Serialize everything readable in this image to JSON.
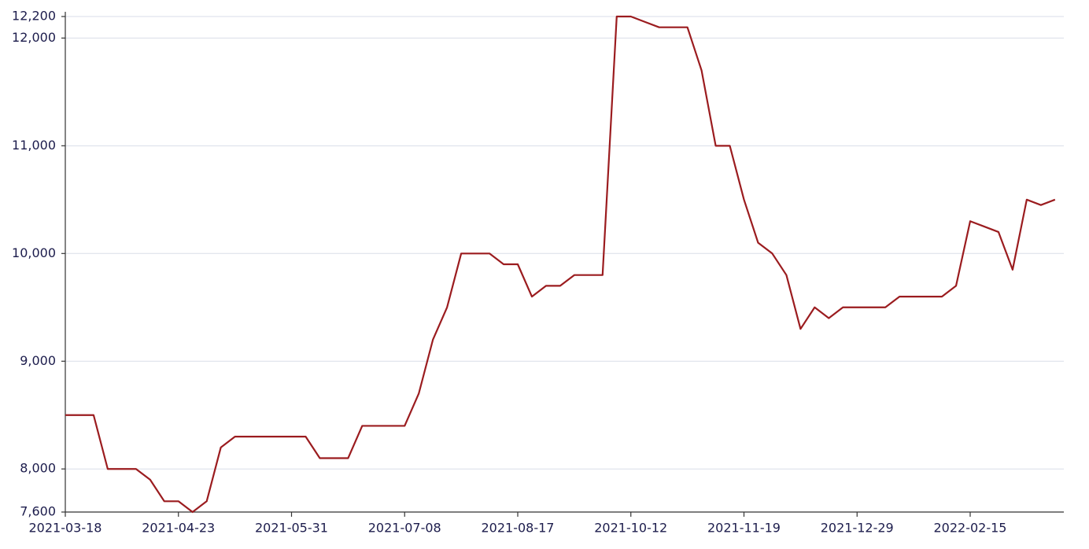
{
  "chart_data": {
    "type": "line",
    "categories": [
      "2021-03-18",
      null,
      null,
      null,
      null,
      null,
      null,
      null,
      "2021-04-23",
      null,
      null,
      null,
      null,
      null,
      null,
      null,
      "2021-05-31",
      null,
      null,
      null,
      null,
      null,
      null,
      null,
      "2021-07-08",
      null,
      null,
      null,
      null,
      null,
      null,
      null,
      "2021-08-17",
      null,
      null,
      null,
      null,
      null,
      null,
      null,
      "2021-10-12",
      null,
      null,
      null,
      null,
      null,
      null,
      null,
      "2021-11-19",
      null,
      null,
      null,
      null,
      null,
      null,
      null,
      "2021-12-29",
      null,
      null,
      null,
      null,
      null,
      null,
      null,
      "2022-02-15",
      null,
      null,
      null,
      null,
      null,
      null
    ],
    "values": [
      8500,
      8500,
      8500,
      8000,
      8000,
      8000,
      7900,
      7700,
      7700,
      7600,
      7700,
      8200,
      8300,
      8300,
      8300,
      8300,
      8300,
      8300,
      8100,
      8100,
      8100,
      8400,
      8400,
      8400,
      8400,
      8700,
      9200,
      9500,
      10000,
      10000,
      10000,
      9900,
      9900,
      9600,
      9700,
      9700,
      9800,
      9800,
      9800,
      12200,
      12200,
      12150,
      12100,
      12100,
      12100,
      11700,
      11000,
      11000,
      10500,
      10100,
      10000,
      9800,
      9300,
      9500,
      9400,
      9500,
      9500,
      9500,
      9500,
      9600,
      9600,
      9600,
      9600,
      9700,
      10300,
      10250,
      10200,
      9850,
      10500,
      10450,
      10500
    ],
    "color": "#9b1c1f",
    "ylim": [
      7600,
      12200
    ],
    "yticks": [
      {
        "value": 7600,
        "label": "7,600"
      },
      {
        "value": 8000,
        "label": "8,000"
      },
      {
        "value": 9000,
        "label": "9,000"
      },
      {
        "value": 10000,
        "label": "10,000"
      },
      {
        "value": 11000,
        "label": "11,000"
      },
      {
        "value": 12000,
        "label": "12,000"
      },
      {
        "value": 12200,
        "label": "12,200"
      }
    ],
    "grid": true
  }
}
